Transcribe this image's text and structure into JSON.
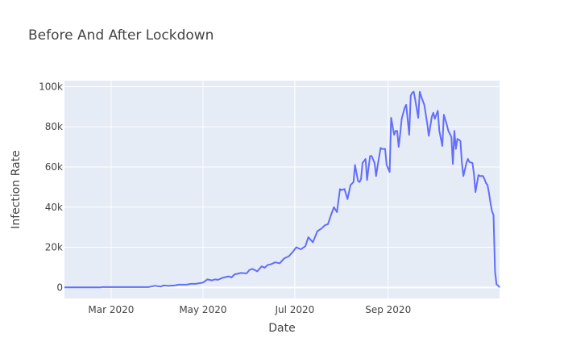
{
  "chart_data": {
    "type": "line",
    "title": "Before And After Lockdown",
    "xlabel": "Date",
    "ylabel": "Infection Rate",
    "x_tick_labels": [
      "Mar 2020",
      "May 2020",
      "Jul 2020",
      "Sep 2020"
    ],
    "x_tick_dates": [
      "2020-03-01",
      "2020-05-01",
      "2020-07-01",
      "2020-09-01"
    ],
    "y_tick_values": [
      0,
      20000,
      40000,
      60000,
      80000,
      100000
    ],
    "y_tick_labels": [
      "0",
      "20k",
      "40k",
      "60k",
      "80k",
      "100k"
    ],
    "xlim": [
      "2020-01-30",
      "2020-11-14"
    ],
    "ylim": [
      -5500,
      103000
    ],
    "grid": true,
    "line_color": "#636efa",
    "background_color": "#e5ecf6",
    "series": [
      {
        "x": [
          "2020-01-30",
          "2020-02-23",
          "2020-02-24",
          "2020-03-26",
          "2020-03-30",
          "2020-04-03",
          "2020-04-05",
          "2020-04-08",
          "2020-04-12",
          "2020-04-15",
          "2020-04-20",
          "2020-04-23",
          "2020-04-26",
          "2020-05-01",
          "2020-05-04",
          "2020-05-07",
          "2020-05-09",
          "2020-05-11",
          "2020-05-14",
          "2020-05-18",
          "2020-05-20",
          "2020-05-22",
          "2020-05-24",
          "2020-05-26",
          "2020-05-30",
          "2020-06-01",
          "2020-06-03",
          "2020-06-06",
          "2020-06-09",
          "2020-06-11",
          "2020-06-13",
          "2020-06-15",
          "2020-06-18",
          "2020-06-21",
          "2020-06-24",
          "2020-06-27",
          "2020-06-30",
          "2020-07-02",
          "2020-07-05",
          "2020-07-08",
          "2020-07-10",
          "2020-07-13",
          "2020-07-16",
          "2020-07-19",
          "2020-07-21",
          "2020-07-23",
          "2020-07-25",
          "2020-07-27",
          "2020-07-29",
          "2020-07-31",
          "2020-08-01",
          "2020-08-03",
          "2020-08-05",
          "2020-08-07",
          "2020-08-09",
          "2020-08-10",
          "2020-08-12",
          "2020-08-13",
          "2020-08-14",
          "2020-08-15",
          "2020-08-17",
          "2020-08-18",
          "2020-08-20",
          "2020-08-21",
          "2020-08-23",
          "2020-08-24",
          "2020-08-25",
          "2020-08-27",
          "2020-08-28",
          "2020-08-30",
          "2020-08-31",
          "2020-09-02",
          "2020-09-03",
          "2020-09-05",
          "2020-09-06",
          "2020-09-07",
          "2020-09-08",
          "2020-09-09",
          "2020-09-10",
          "2020-09-12",
          "2020-09-13",
          "2020-09-15",
          "2020-09-16",
          "2020-09-17",
          "2020-09-18",
          "2020-09-19",
          "2020-09-21",
          "2020-09-22",
          "2020-09-23",
          "2020-09-25",
          "2020-09-27",
          "2020-09-28",
          "2020-09-30",
          "2020-10-01",
          "2020-10-02",
          "2020-10-04",
          "2020-10-05",
          "2020-10-07",
          "2020-10-08",
          "2020-10-10",
          "2020-10-11",
          "2020-10-13",
          "2020-10-14",
          "2020-10-15",
          "2020-10-16",
          "2020-10-17",
          "2020-10-19",
          "2020-10-20",
          "2020-10-21",
          "2020-10-23",
          "2020-10-24",
          "2020-10-25",
          "2020-10-27",
          "2020-10-28",
          "2020-10-29",
          "2020-10-31",
          "2020-11-01",
          "2020-11-02",
          "2020-11-03",
          "2020-11-04",
          "2020-11-05",
          "2020-11-06",
          "2020-11-07",
          "2020-11-08",
          "2020-11-09",
          "2020-11-10",
          "2020-11-11",
          "2020-11-12",
          "2020-11-13",
          "2020-11-14"
        ],
        "y": [
          0,
          0,
          200,
          200,
          800,
          400,
          1000,
          800,
          1000,
          1400,
          1400,
          1800,
          1800,
          2400,
          4000,
          3500,
          4000,
          3800,
          4800,
          5500,
          5000,
          6500,
          6800,
          7200,
          7000,
          8800,
          9200,
          8000,
          10500,
          9800,
          11200,
          11500,
          12500,
          12000,
          14500,
          15500,
          18000,
          20000,
          19000,
          20500,
          25000,
          22500,
          28000,
          29500,
          31000,
          31500,
          36000,
          40000,
          37500,
          49000,
          48500,
          49000,
          44000,
          51000,
          52500,
          61000,
          53000,
          52500,
          54000,
          62000,
          64000,
          53500,
          65500,
          65500,
          62000,
          55500,
          60500,
          69500,
          69000,
          69000,
          61000,
          57500,
          84500,
          76000,
          78000,
          78000,
          70000,
          76500,
          84000,
          89500,
          91000,
          76000,
          95500,
          97000,
          97500,
          93500,
          84500,
          97500,
          95000,
          91000,
          81500,
          75500,
          85000,
          87000,
          84000,
          88000,
          78000,
          70500,
          86000,
          81000,
          78000,
          75000,
          61500,
          78000,
          69000,
          74000,
          73000,
          62000,
          55500,
          62000,
          64000,
          62500,
          62000,
          56500,
          47500,
          56000,
          55500,
          55500,
          55500,
          54000,
          52000,
          51000,
          47000,
          42000,
          38000,
          36000,
          8000,
          1500,
          1000,
          0
        ]
      }
    ]
  }
}
